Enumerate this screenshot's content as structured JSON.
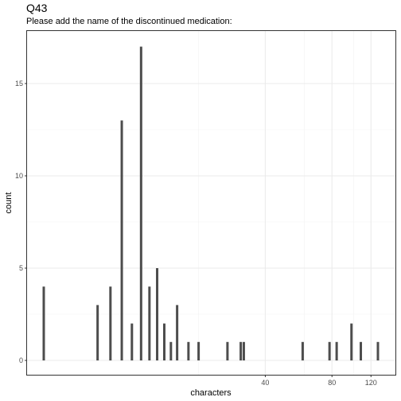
{
  "chart_data": {
    "type": "bar",
    "title": "Q43",
    "subtitle": "Please add the name of the discontinued medication:",
    "xlabel": "characters",
    "ylabel": "count",
    "x_scale": "log",
    "x_ticks": [
      40,
      80,
      120
    ],
    "y_ticks": [
      0,
      5,
      10,
      15
    ],
    "ylim": [
      0,
      17.8
    ],
    "grid": true,
    "bars": [
      {
        "x": 4,
        "y": 4
      },
      {
        "x": 7,
        "y": 3
      },
      {
        "x": 8,
        "y": 4
      },
      {
        "x": 9,
        "y": 13
      },
      {
        "x": 10,
        "y": 2
      },
      {
        "x": 11,
        "y": 17
      },
      {
        "x": 12,
        "y": 4
      },
      {
        "x": 13,
        "y": 5
      },
      {
        "x": 14,
        "y": 2
      },
      {
        "x": 15,
        "y": 1
      },
      {
        "x": 16,
        "y": 3
      },
      {
        "x": 18,
        "y": 1
      },
      {
        "x": 20,
        "y": 1
      },
      {
        "x": 27,
        "y": 1
      },
      {
        "x": 31,
        "y": 1
      },
      {
        "x": 32,
        "y": 1
      },
      {
        "x": 59,
        "y": 1
      },
      {
        "x": 78,
        "y": 1
      },
      {
        "x": 84,
        "y": 1
      },
      {
        "x": 98,
        "y": 2
      },
      {
        "x": 108,
        "y": 1
      },
      {
        "x": 129,
        "y": 1
      }
    ]
  }
}
